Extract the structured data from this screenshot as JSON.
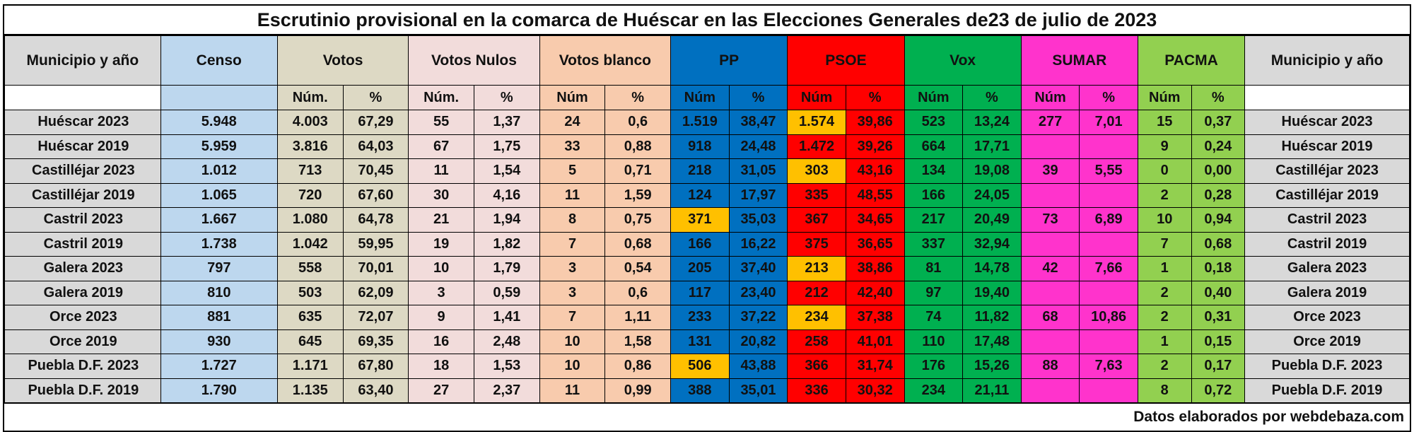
{
  "title": "Escrutinio provisional en la comarca de Huéscar en las Elecciones Generales de23 de julio de 2023",
  "footer": "Datos elaborados por webdebaza.com",
  "headers": {
    "municipio": "Municipio y año",
    "censo": "Censo",
    "votos": "Votos",
    "nulos": "Votos Nulos",
    "blanco": "Votos blanco",
    "pp": "PP",
    "psoe": "PSOE",
    "vox": "Vox",
    "sumar": "SUMAR",
    "pacma": "PACMA",
    "municipio_right": "Municipio y año"
  },
  "subheaders": {
    "votos_num": "Núm.",
    "votos_pct": "%",
    "nulos_num": "Núm.",
    "nulos_pct": "%",
    "blanco_num": "Núm",
    "blanco_pct": "%",
    "pp_num": "Núm",
    "pp_pct": "%",
    "psoe_num": "Núm",
    "psoe_pct": "%",
    "vox_num": "Núm",
    "vox_pct": "%",
    "sumar_num": "Núm",
    "sumar_pct": "%",
    "pacma_num": "Núm",
    "pacma_pct": "%"
  },
  "colors": {
    "censo": "#bdd7ee",
    "votos": "#ddd9c4",
    "nulos": "#f2dcdb",
    "blanco": "#f8cbad",
    "pp": "#0070c0",
    "psoe": "#ff0000",
    "vox": "#00b050",
    "sumar": "#ff33cc",
    "pacma": "#92d050",
    "highlight_winner": "#ffc000",
    "municipio": "#d9d9d9"
  },
  "rows": [
    {
      "municipio": "Huéscar 2023",
      "censo": "5.948",
      "votos_num": "4.003",
      "votos_pct": "67,29",
      "nulos_num": "55",
      "nulos_pct": "1,37",
      "blanco_num": "24",
      "blanco_pct": "0,6",
      "pp_num": "1.519",
      "pp_pct": "38,47",
      "psoe_num": "1.574",
      "psoe_pct": "39,86",
      "vox_num": "523",
      "vox_pct": "13,24",
      "sumar_num": "277",
      "sumar_pct": "7,01",
      "pacma_num": "15",
      "pacma_pct": "0,37",
      "highlight": "psoe"
    },
    {
      "municipio": "Huéscar 2019",
      "censo": "5.959",
      "votos_num": "3.816",
      "votos_pct": "64,03",
      "nulos_num": "67",
      "nulos_pct": "1,75",
      "blanco_num": "33",
      "blanco_pct": "0,88",
      "pp_num": "918",
      "pp_pct": "24,48",
      "psoe_num": "1.472",
      "psoe_pct": "39,26",
      "vox_num": "664",
      "vox_pct": "17,71",
      "sumar_num": "",
      "sumar_pct": "",
      "pacma_num": "9",
      "pacma_pct": "0,24",
      "highlight": ""
    },
    {
      "municipio": "Castilléjar 2023",
      "censo": "1.012",
      "votos_num": "713",
      "votos_pct": "70,45",
      "nulos_num": "11",
      "nulos_pct": "1,54",
      "blanco_num": "5",
      "blanco_pct": "0,71",
      "pp_num": "218",
      "pp_pct": "31,05",
      "psoe_num": "303",
      "psoe_pct": "43,16",
      "vox_num": "134",
      "vox_pct": "19,08",
      "sumar_num": "39",
      "sumar_pct": "5,55",
      "pacma_num": "0",
      "pacma_pct": "0,00",
      "highlight": "psoe"
    },
    {
      "municipio": "Castilléjar 2019",
      "censo": "1.065",
      "votos_num": "720",
      "votos_pct": "67,60",
      "nulos_num": "30",
      "nulos_pct": "4,16",
      "blanco_num": "11",
      "blanco_pct": "1,59",
      "pp_num": "124",
      "pp_pct": "17,97",
      "psoe_num": "335",
      "psoe_pct": "48,55",
      "vox_num": "166",
      "vox_pct": "24,05",
      "sumar_num": "",
      "sumar_pct": "",
      "pacma_num": "2",
      "pacma_pct": "0,28",
      "highlight": ""
    },
    {
      "municipio": "Castril 2023",
      "censo": "1.667",
      "votos_num": "1.080",
      "votos_pct": "64,78",
      "nulos_num": "21",
      "nulos_pct": "1,94",
      "blanco_num": "8",
      "blanco_pct": "0,75",
      "pp_num": "371",
      "pp_pct": "35,03",
      "psoe_num": "367",
      "psoe_pct": "34,65",
      "vox_num": "217",
      "vox_pct": "20,49",
      "sumar_num": "73",
      "sumar_pct": "6,89",
      "pacma_num": "10",
      "pacma_pct": "0,94",
      "highlight": "pp"
    },
    {
      "municipio": "Castril 2019",
      "censo": "1.738",
      "votos_num": "1.042",
      "votos_pct": "59,95",
      "nulos_num": "19",
      "nulos_pct": "1,82",
      "blanco_num": "7",
      "blanco_pct": "0,68",
      "pp_num": "166",
      "pp_pct": "16,22",
      "psoe_num": "375",
      "psoe_pct": "36,65",
      "vox_num": "337",
      "vox_pct": "32,94",
      "sumar_num": "",
      "sumar_pct": "",
      "pacma_num": "7",
      "pacma_pct": "0,68",
      "highlight": ""
    },
    {
      "municipio": "Galera 2023",
      "censo": "797",
      "votos_num": "558",
      "votos_pct": "70,01",
      "nulos_num": "10",
      "nulos_pct": "1,79",
      "blanco_num": "3",
      "blanco_pct": "0,54",
      "pp_num": "205",
      "pp_pct": "37,40",
      "psoe_num": "213",
      "psoe_pct": "38,86",
      "vox_num": "81",
      "vox_pct": "14,78",
      "sumar_num": "42",
      "sumar_pct": "7,66",
      "pacma_num": "1",
      "pacma_pct": "0,18",
      "highlight": "psoe"
    },
    {
      "municipio": "Galera 2019",
      "censo": "810",
      "votos_num": "503",
      "votos_pct": "62,09",
      "nulos_num": "3",
      "nulos_pct": "0,59",
      "blanco_num": "3",
      "blanco_pct": "0,6",
      "pp_num": "117",
      "pp_pct": "23,40",
      "psoe_num": "212",
      "psoe_pct": "42,40",
      "vox_num": "97",
      "vox_pct": "19,40",
      "sumar_num": "",
      "sumar_pct": "",
      "pacma_num": "2",
      "pacma_pct": "0,40",
      "highlight": ""
    },
    {
      "municipio": "Orce 2023",
      "censo": "881",
      "votos_num": "635",
      "votos_pct": "72,07",
      "nulos_num": "9",
      "nulos_pct": "1,41",
      "blanco_num": "7",
      "blanco_pct": "1,11",
      "pp_num": "233",
      "pp_pct": "37,22",
      "psoe_num": "234",
      "psoe_pct": "37,38",
      "vox_num": "74",
      "vox_pct": "11,82",
      "sumar_num": "68",
      "sumar_pct": "10,86",
      "pacma_num": "2",
      "pacma_pct": "0,31",
      "highlight": "psoe"
    },
    {
      "municipio": "Orce 2019",
      "censo": "930",
      "votos_num": "645",
      "votos_pct": "69,35",
      "nulos_num": "16",
      "nulos_pct": "2,48",
      "blanco_num": "10",
      "blanco_pct": "1,58",
      "pp_num": "131",
      "pp_pct": "20,82",
      "psoe_num": "258",
      "psoe_pct": "41,01",
      "vox_num": "110",
      "vox_pct": "17,48",
      "sumar_num": "",
      "sumar_pct": "",
      "pacma_num": "1",
      "pacma_pct": "0,15",
      "highlight": ""
    },
    {
      "municipio": "Puebla D.F. 2023",
      "censo": "1.727",
      "votos_num": "1.171",
      "votos_pct": "67,80",
      "nulos_num": "18",
      "nulos_pct": "1,53",
      "blanco_num": "10",
      "blanco_pct": "0,86",
      "pp_num": "506",
      "pp_pct": "43,88",
      "psoe_num": "366",
      "psoe_pct": "31,74",
      "vox_num": "176",
      "vox_pct": "15,26",
      "sumar_num": "88",
      "sumar_pct": "7,63",
      "pacma_num": "2",
      "pacma_pct": "0,17",
      "highlight": "pp"
    },
    {
      "municipio": "Puebla D.F. 2019",
      "censo": "1.790",
      "votos_num": "1.135",
      "votos_pct": "63,40",
      "nulos_num": "27",
      "nulos_pct": "2,37",
      "blanco_num": "11",
      "blanco_pct": "0,99",
      "pp_num": "388",
      "pp_pct": "35,01",
      "psoe_num": "336",
      "psoe_pct": "30,32",
      "vox_num": "234",
      "vox_pct": "21,11",
      "sumar_num": "",
      "sumar_pct": "",
      "pacma_num": "8",
      "pacma_pct": "0,72",
      "highlight": ""
    }
  ]
}
